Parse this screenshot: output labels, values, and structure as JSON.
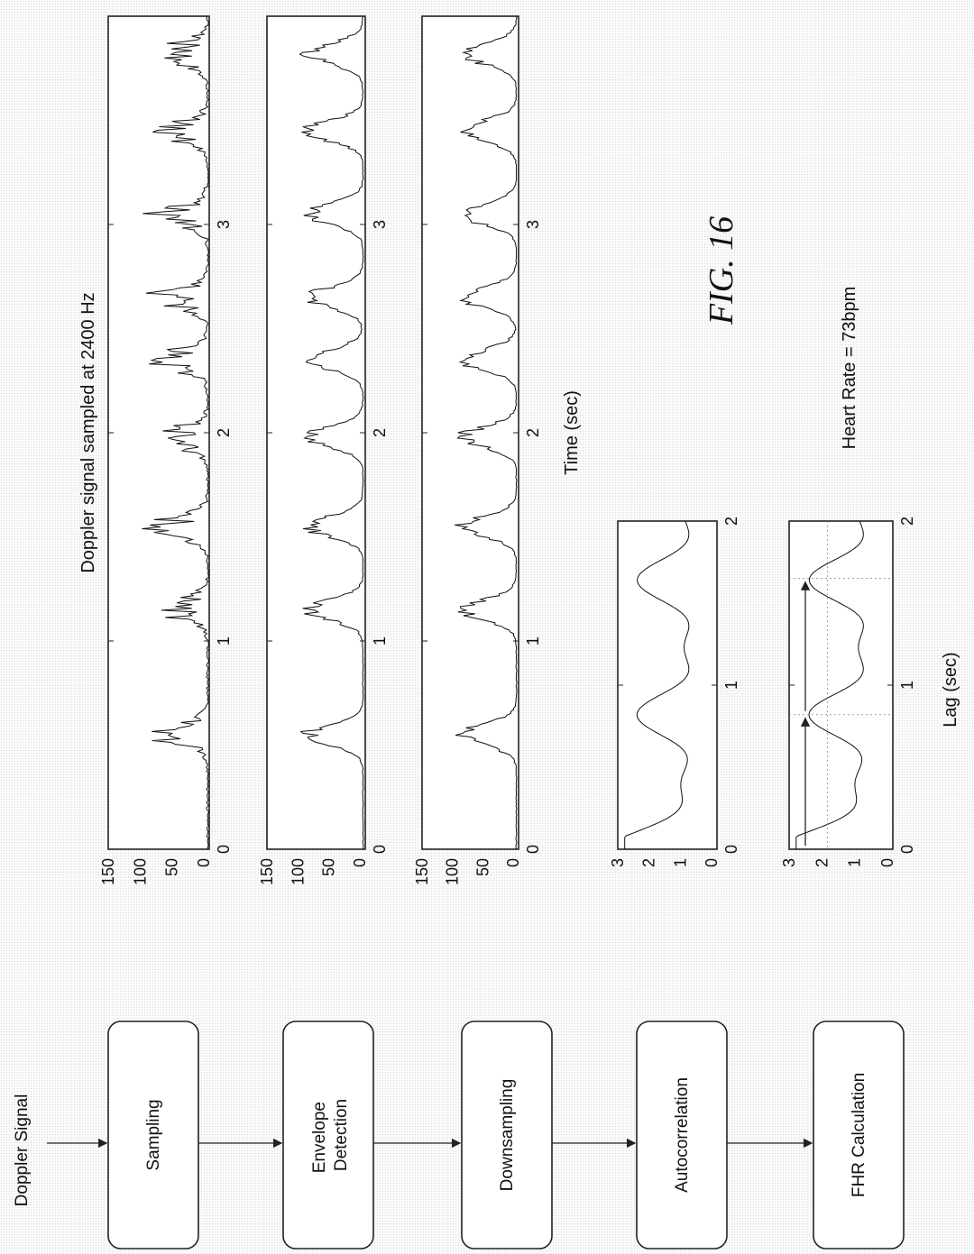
{
  "flowchart": {
    "input_label": "Doppler Signal",
    "steps": [
      {
        "label": "Sampling"
      },
      {
        "label": "Envelope Detection"
      },
      {
        "label": "Downsampling"
      },
      {
        "label": "Autocorrelation"
      },
      {
        "label": "FHR Calculation"
      }
    ]
  },
  "figure": {
    "caption": "FIG. 16",
    "heart_rate": "Heart Rate = 73bpm"
  },
  "chart_data": [
    {
      "type": "line",
      "title": "Doppler signal sampled at 2400 Hz",
      "xlabel": "",
      "ylabel": "",
      "xlim": [
        0,
        4
      ],
      "ylim": [
        0,
        150
      ],
      "x_ticks": [
        "0",
        "1",
        "2",
        "3"
      ],
      "y_ticks": [
        "150",
        "100",
        "50",
        "0"
      ]
    },
    {
      "type": "line",
      "title": "",
      "xlabel": "",
      "ylabel": "",
      "xlim": [
        0,
        4
      ],
      "ylim": [
        0,
        150
      ],
      "x_ticks": [
        "0",
        "1",
        "2",
        "3"
      ],
      "y_ticks": [
        "150",
        "100",
        "50",
        "0"
      ]
    },
    {
      "type": "line",
      "title": "",
      "xlabel": "Time (sec)",
      "ylabel": "",
      "xlim": [
        0,
        4
      ],
      "ylim": [
        0,
        150
      ],
      "x_ticks": [
        "0",
        "1",
        "2",
        "3"
      ],
      "y_ticks": [
        "150",
        "100",
        "50",
        "0"
      ]
    },
    {
      "type": "line",
      "title": "",
      "xlabel": "",
      "ylabel": "",
      "xlim": [
        0,
        2
      ],
      "ylim": [
        0,
        3
      ],
      "x_ticks": [
        "0",
        "1",
        "2"
      ],
      "y_ticks": [
        "3",
        "2",
        "1",
        "0"
      ]
    },
    {
      "type": "line",
      "title": "",
      "xlabel": "Lag (sec)",
      "ylabel": "",
      "xlim": [
        0,
        2
      ],
      "ylim": [
        0,
        3
      ],
      "x_ticks": [
        "0",
        "1",
        "2"
      ],
      "y_ticks": [
        "3",
        "2",
        "1",
        "0"
      ],
      "markers": [
        0.82,
        1.65
      ]
    }
  ]
}
